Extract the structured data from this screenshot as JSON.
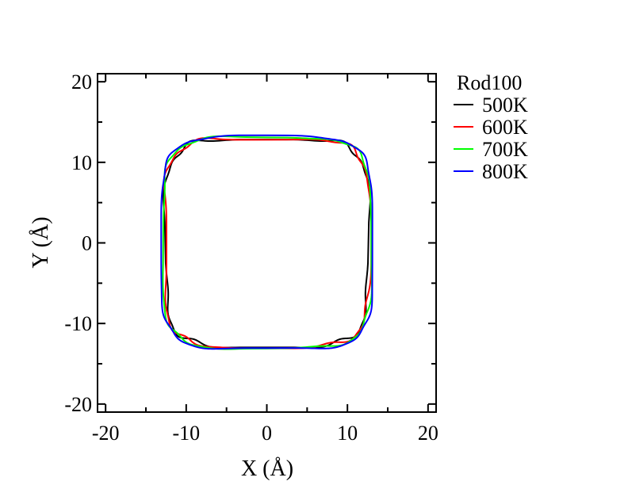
{
  "chart_data": {
    "type": "line",
    "title": "",
    "xlabel": "X (Å)",
    "ylabel": "Y (Å)",
    "xlim": [
      -21,
      21
    ],
    "ylim": [
      -21,
      21
    ],
    "x_ticks": [
      -20,
      -10,
      0,
      10,
      20
    ],
    "y_ticks": [
      -20,
      -10,
      0,
      10,
      20
    ],
    "x_tick_labels": [
      "-20",
      "-10",
      "0",
      "10",
      "20"
    ],
    "y_tick_labels": [
      "-20",
      "-10",
      "0",
      "10",
      "20"
    ],
    "grid": false,
    "legend": {
      "title": "Rod100",
      "position": "outside-right-top"
    },
    "series": [
      {
        "name": "500K",
        "color": "#000000",
        "shape": {
          "half_width": 12.6,
          "half_height": 12.9,
          "exponent": 5.0,
          "roughness": 0.35
        }
      },
      {
        "name": "600K",
        "color": "#ff0000",
        "shape": {
          "half_width": 12.7,
          "half_height": 12.95,
          "exponent": 5.0,
          "roughness": 0.3
        }
      },
      {
        "name": "700K",
        "color": "#00ff00",
        "shape": {
          "half_width": 12.9,
          "half_height": 13.1,
          "exponent": 5.0,
          "roughness": 0.2
        }
      },
      {
        "name": "800K",
        "color": "#0000ff",
        "shape": {
          "half_width": 13.1,
          "half_height": 13.2,
          "exponent": 5.0,
          "roughness": 0.15
        }
      }
    ]
  }
}
